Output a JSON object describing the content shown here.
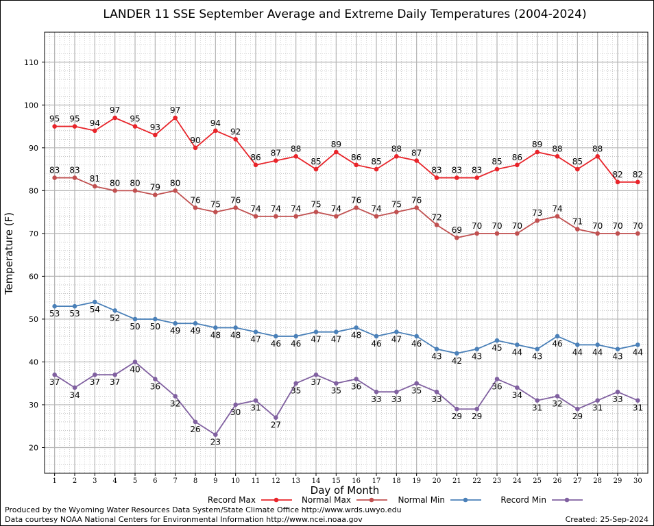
{
  "chart_data": {
    "type": "line",
    "title": "LANDER 11 SSE September Average and Extreme Daily Temperatures (2004-2024)",
    "xlabel": "Day of Month",
    "ylabel": "Temperature (F)",
    "xlim": [
      0.5,
      30.5
    ],
    "ylim": [
      14,
      117
    ],
    "y_ticks": [
      20,
      30,
      40,
      50,
      60,
      70,
      80,
      90,
      100,
      110
    ],
    "x": [
      1,
      2,
      3,
      4,
      5,
      6,
      7,
      8,
      9,
      10,
      11,
      12,
      13,
      14,
      15,
      16,
      17,
      18,
      19,
      20,
      21,
      22,
      23,
      24,
      25,
      26,
      27,
      28,
      29,
      30
    ],
    "grid": true,
    "legend_position": "bottom",
    "series": [
      {
        "name": "Record Max",
        "color": "#e8242a",
        "label_position": "above",
        "values": [
          95,
          95,
          94,
          97,
          95,
          93,
          97,
          90,
          94,
          92,
          86,
          87,
          88,
          85,
          89,
          86,
          85,
          88,
          87,
          83,
          83,
          83,
          85,
          86,
          89,
          88,
          85,
          88,
          82,
          82
        ]
      },
      {
        "name": "Normal Max",
        "color": "#c05050",
        "label_position": "above",
        "values": [
          83,
          83,
          81,
          80,
          80,
          79,
          80,
          76,
          75,
          76,
          74,
          74,
          74,
          75,
          74,
          76,
          74,
          75,
          76,
          72,
          69,
          70,
          70,
          70,
          73,
          74,
          71,
          70,
          70,
          70
        ]
      },
      {
        "name": "Normal Min",
        "color": "#4a80b8",
        "label_position": "below",
        "values": [
          53,
          53,
          54,
          52,
          50,
          50,
          49,
          49,
          48,
          48,
          47,
          46,
          46,
          47,
          47,
          48,
          46,
          47,
          46,
          43,
          42,
          43,
          45,
          44,
          43,
          46,
          44,
          44,
          43,
          44
        ]
      },
      {
        "name": "Record Min",
        "color": "#8060a0",
        "label_position": "below",
        "values": [
          37,
          34,
          37,
          37,
          40,
          36,
          32,
          26,
          23,
          30,
          31,
          27,
          35,
          37,
          35,
          36,
          33,
          33,
          35,
          33,
          29,
          29,
          36,
          34,
          31,
          32,
          29,
          31,
          33,
          31
        ]
      }
    ]
  },
  "footer": {
    "produced_by": "Produced by the Wyoming Water Resources Data System/State Climate Office http://www.wrds.uwyo.edu",
    "data_courtesy": "Data courtesy NOAA National Centers for Environmental Information http://www.ncei.noaa.gov",
    "created": "Created:  25-Sep-2024"
  }
}
